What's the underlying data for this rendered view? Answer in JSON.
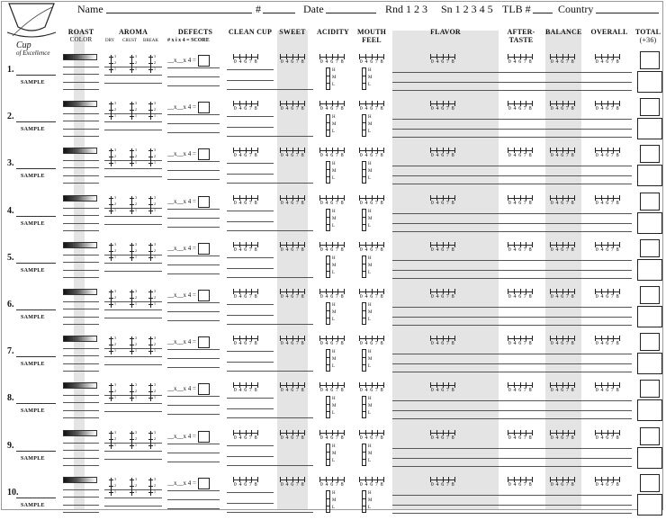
{
  "logo": {
    "line1": "Cup",
    "line2": "of Excellence"
  },
  "header": {
    "name_label": "Name",
    "number_label": "#",
    "date_label": "Date",
    "round_label": "Rnd 1 2 3",
    "session_label": "Sn 1 2 3 4 5",
    "tlb_label": "TLB #",
    "country_label": "Country"
  },
  "columns": {
    "roast": "ROAST",
    "roast_sub": "COLOR",
    "aroma": "AROMA",
    "aroma_dry": "DRY",
    "aroma_crust": "CRUST",
    "aroma_break": "BREAK",
    "defects": "DEFECTS",
    "defects_sub": "# x i x 4 = SCORE",
    "clean_cup": "CLEAN CUP",
    "sweet": "SWEET",
    "acidity": "ACIDITY",
    "mouthfeel": "MOUTH FEEL",
    "flavor": "FLAVOR",
    "aftertaste": "AFTER-TASTE",
    "balance": "BALANCE",
    "overall": "OVERALL",
    "total": "TOTAL",
    "total_sub": "(+36)"
  },
  "scale_numbers": "0 4 6 7 8",
  "aroma_digits": [
    "3",
    "2",
    "1"
  ],
  "defect_formula": "__x__x 4 =",
  "intensity_labels": [
    "H",
    "M",
    "L"
  ],
  "sample_label": "SAMPLE",
  "rows": [
    {
      "num": "1."
    },
    {
      "num": "2."
    },
    {
      "num": "3."
    },
    {
      "num": "4."
    },
    {
      "num": "5."
    },
    {
      "num": "6."
    },
    {
      "num": "7."
    },
    {
      "num": "8."
    },
    {
      "num": "9."
    },
    {
      "num": "10."
    }
  ],
  "colors": {
    "shade": "#e4e4e4",
    "ink": "#111111",
    "frame": "#9a9a9a"
  }
}
